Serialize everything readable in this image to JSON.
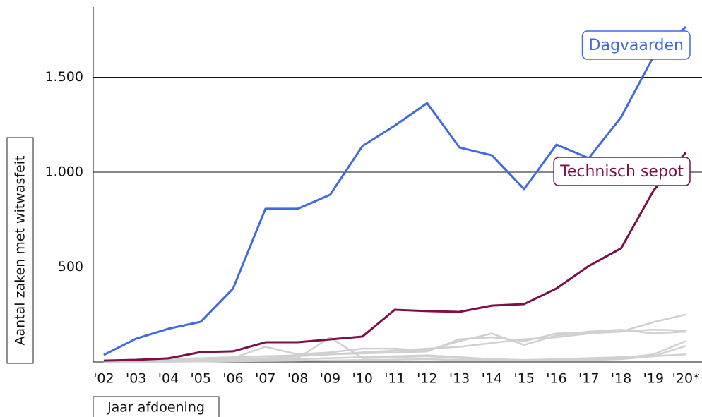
{
  "chart_data": {
    "type": "line",
    "y_label": "Aantal zaken met witwasfeit",
    "x_label": "Jaar afdoening",
    "categories": [
      "'02",
      "'03",
      "'04",
      "'05",
      "'06",
      "'07",
      "'08",
      "'09",
      "'10",
      "'11",
      "'12",
      "'13",
      "'14",
      "'15",
      "'16",
      "'17",
      "'18",
      "'19",
      "'20*"
    ],
    "series": [
      {
        "color": "#d0d0d0",
        "values": [
          5,
          10,
          15,
          20,
          25,
          30,
          35,
          40,
          45,
          50,
          55,
          120,
          130,
          110,
          150,
          155,
          160,
          210,
          250
        ]
      },
      {
        "color": "#d0d0d0",
        "values": [
          3,
          5,
          8,
          10,
          15,
          20,
          30,
          40,
          50,
          60,
          70,
          80,
          100,
          120,
          130,
          150,
          160,
          170,
          165
        ]
      },
      {
        "color": "#d0d0d0",
        "values": [
          2,
          3,
          5,
          8,
          10,
          15,
          20,
          130,
          20,
          25,
          30,
          20,
          15,
          10,
          15,
          20,
          25,
          30,
          40
        ]
      },
      {
        "color": "#d0d0d0",
        "values": [
          1,
          2,
          5,
          10,
          20,
          80,
          40,
          50,
          70,
          70,
          60,
          110,
          150,
          90,
          140,
          160,
          170,
          150,
          160
        ]
      },
      {
        "color": "#d0d0d0",
        "values": [
          1,
          1,
          2,
          3,
          4,
          5,
          6,
          8,
          10,
          12,
          15,
          10,
          8,
          10,
          12,
          15,
          20,
          40,
          110
        ]
      },
      {
        "color": "#d0d0d0",
        "values": [
          0,
          1,
          2,
          3,
          5,
          10,
          15,
          20,
          25,
          30,
          35,
          25,
          15,
          10,
          8,
          10,
          15,
          30,
          85
        ]
      },
      {
        "name": "Technisch sepot",
        "color": "#7d0f4a",
        "values": [
          7,
          11,
          19,
          52,
          56,
          104,
          104,
          119,
          134,
          275,
          268,
          264,
          297,
          305,
          387,
          506,
          599,
          903,
          1104
        ]
      },
      {
        "name": "Dagvaarden",
        "color": "#3f6ae0",
        "values": [
          37,
          123,
          175,
          212,
          387,
          807,
          807,
          881,
          1138,
          1245,
          1364,
          1130,
          1089,
          911,
          1145,
          1074,
          1290,
          1610,
          1766
        ]
      }
    ],
    "ylim": [
      0,
      1870
    ],
    "yticks": [
      500,
      {
        "value": 1000,
        "label": "1.000"
      },
      {
        "value": 1500,
        "label": "1.500"
      }
    ],
    "grid": true
  }
}
